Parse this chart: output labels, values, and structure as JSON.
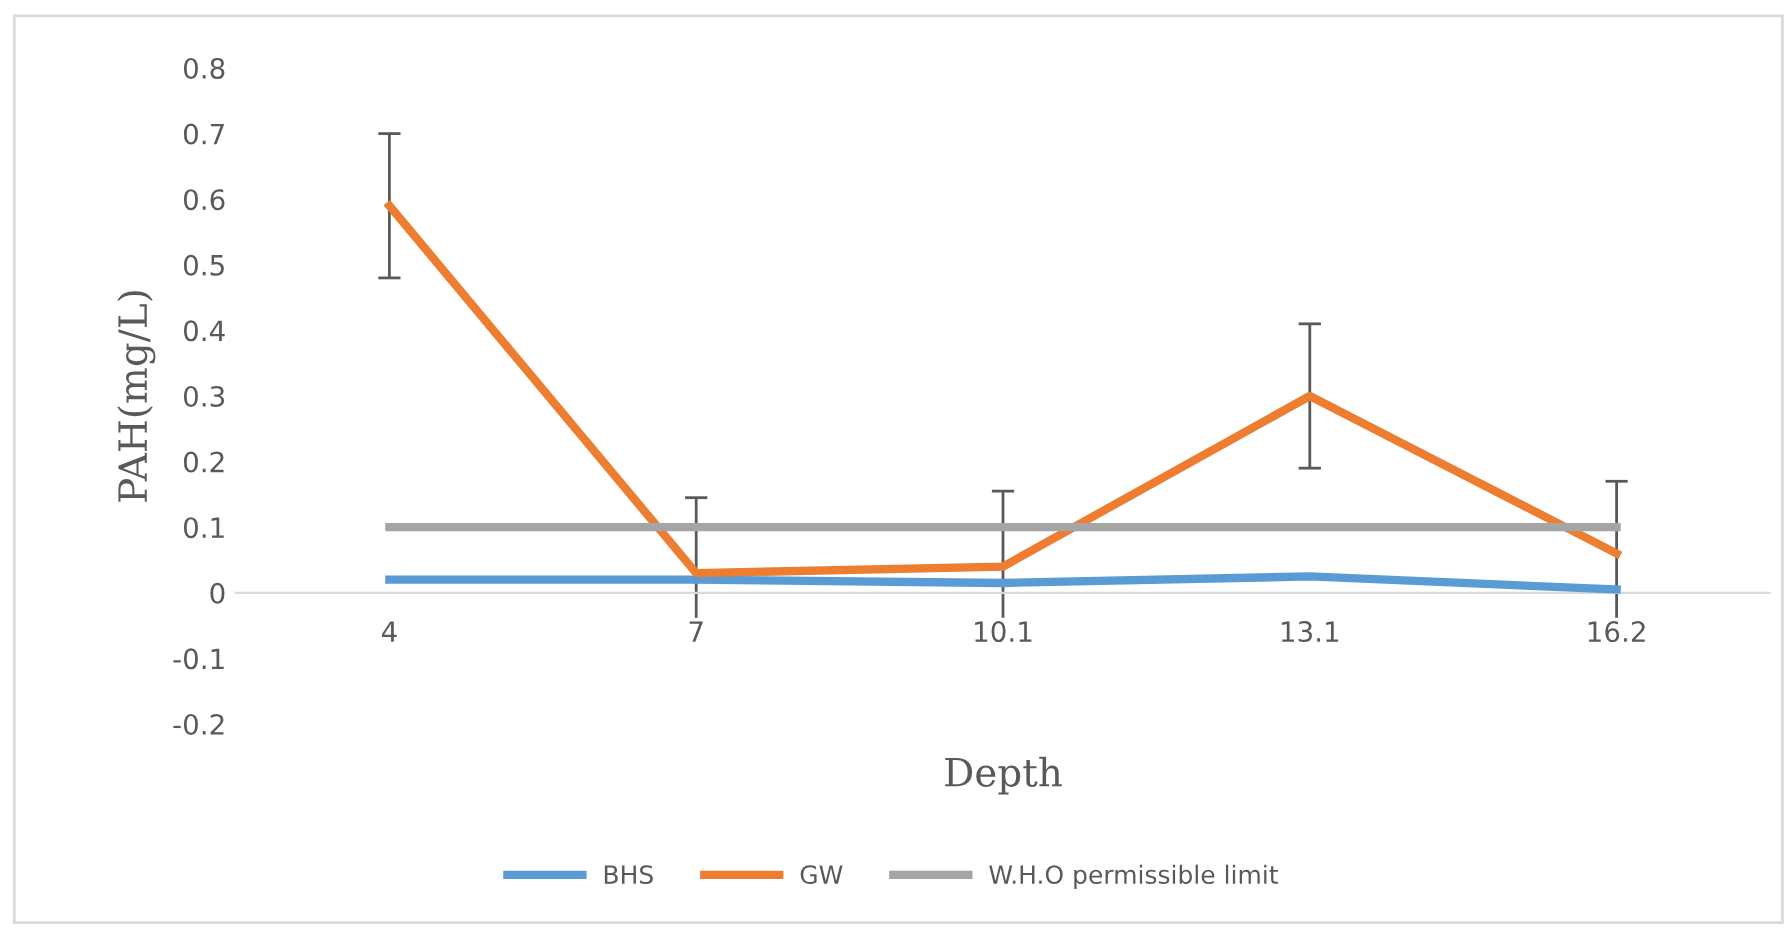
{
  "chart_data": {
    "type": "line",
    "xlabel": "Depth",
    "ylabel": "PAH(mg/L)",
    "categories": [
      "4",
      "7",
      "10.1",
      "13.1",
      "16.2"
    ],
    "series": [
      {
        "name": "BHS",
        "color": "#5b9bd5",
        "values": [
          0.02,
          0.02,
          0.015,
          0.025,
          0.005
        ]
      },
      {
        "name": "GW",
        "color": "#ed7d31",
        "values": [
          0.59,
          0.03,
          0.04,
          0.3,
          0.06
        ],
        "errors": [
          0.11,
          0.115,
          0.115,
          0.11,
          0.11
        ]
      },
      {
        "name": "W.H.O permissible limit",
        "color": "#a5a5a5",
        "values": [
          0.1,
          0.1,
          0.1,
          0.1,
          0.1
        ]
      }
    ],
    "ylim": [
      -0.2,
      0.8
    ],
    "yticks": [
      -0.2,
      -0.1,
      0,
      0.1,
      0.2,
      0.3,
      0.4,
      0.5,
      0.6,
      0.7,
      0.8
    ],
    "grid": false,
    "legend": "bottom",
    "marker": "none",
    "line_style": "solid"
  }
}
